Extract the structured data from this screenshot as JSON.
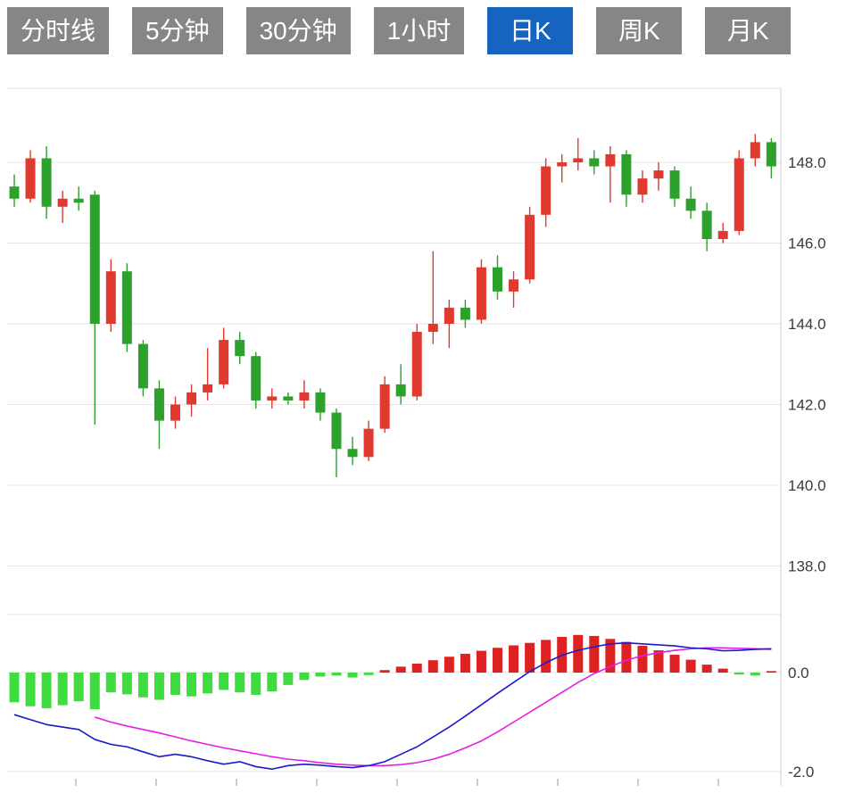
{
  "tabs": {
    "items": [
      {
        "label": "分时线",
        "active": false
      },
      {
        "label": "5分钟",
        "active": false
      },
      {
        "label": "30分钟",
        "active": false
      },
      {
        "label": "1小时",
        "active": false
      },
      {
        "label": "日K",
        "active": true
      },
      {
        "label": "周K",
        "active": false
      },
      {
        "label": "月K",
        "active": false
      }
    ],
    "active_bg": "#1565c0",
    "inactive_bg": "#868686",
    "text_color": "#ffffff"
  },
  "chart_data": {
    "type": "candlestick",
    "title": "",
    "xlabel": "",
    "ylabel": "",
    "grid": true,
    "legend_position": "none",
    "up_color": "#e0392f",
    "down_color": "#2ca12c",
    "hist_up_color": "#dd2222",
    "hist_down_color": "#3fdc3f",
    "dif_color": "#1a1ac8",
    "dea_color": "#e41ee4",
    "grid_color": "#e5e5e5",
    "axis_color": "#cccccc",
    "tick_color": "#999999",
    "label_color": "#3a3a3a",
    "panels": [
      {
        "name": "price",
        "ylabels": [
          "148.0",
          "146.0",
          "144.0",
          "142.0",
          "140.0",
          "138.0"
        ],
        "ylim": [
          137.4,
          149.8
        ],
        "candles": {
          "o": [
            147.4,
            147.1,
            148.1,
            146.9,
            147.1,
            147.2,
            144.0,
            145.3,
            143.5,
            142.4,
            141.6,
            142.0,
            142.3,
            142.5,
            143.6,
            143.2,
            142.1,
            142.2,
            142.1,
            142.3,
            141.8,
            140.9,
            140.7,
            141.4,
            142.5,
            142.2,
            143.8,
            144.0,
            144.4,
            144.1,
            145.4,
            144.8,
            145.1,
            146.7,
            147.9,
            148.0,
            148.1,
            147.9,
            148.2,
            147.2,
            147.6,
            147.8,
            147.1,
            146.8,
            146.1,
            146.3,
            148.1,
            148.5
          ],
          "h": [
            147.7,
            148.3,
            148.4,
            147.3,
            147.4,
            147.3,
            145.6,
            145.5,
            143.6,
            142.6,
            142.2,
            142.5,
            143.4,
            143.9,
            143.8,
            143.3,
            142.4,
            142.3,
            142.6,
            142.4,
            141.9,
            141.2,
            141.6,
            142.7,
            143.0,
            144.0,
            145.8,
            144.6,
            144.6,
            145.6,
            145.7,
            145.3,
            146.9,
            148.1,
            148.2,
            148.6,
            148.3,
            148.4,
            148.3,
            147.8,
            148.0,
            147.9,
            147.4,
            147.0,
            146.5,
            148.3,
            148.7,
            148.6
          ],
          "l": [
            146.9,
            147.0,
            146.6,
            146.5,
            146.8,
            141.5,
            143.8,
            143.3,
            142.2,
            140.9,
            141.4,
            141.7,
            142.1,
            142.4,
            143.0,
            141.9,
            141.9,
            142.0,
            141.9,
            141.6,
            140.2,
            140.5,
            140.6,
            141.3,
            142.0,
            142.1,
            143.5,
            143.4,
            143.9,
            144.0,
            144.6,
            144.4,
            145.0,
            146.4,
            147.5,
            147.8,
            147.7,
            147.0,
            146.9,
            147.0,
            147.3,
            146.9,
            146.6,
            145.8,
            146.0,
            146.2,
            147.9,
            147.6
          ],
          "c": [
            147.1,
            148.1,
            146.9,
            147.1,
            147.0,
            144.0,
            145.3,
            143.5,
            142.4,
            141.6,
            142.0,
            142.3,
            142.5,
            143.6,
            143.2,
            142.1,
            142.2,
            142.1,
            142.3,
            141.8,
            140.9,
            140.7,
            141.4,
            142.5,
            142.2,
            143.8,
            144.0,
            144.4,
            144.1,
            145.4,
            144.8,
            145.1,
            146.7,
            147.9,
            148.0,
            148.1,
            147.9,
            148.2,
            147.2,
            147.6,
            147.8,
            147.1,
            146.8,
            146.1,
            146.3,
            148.1,
            148.5,
            147.9
          ]
        }
      },
      {
        "name": "macd",
        "ylabels": [
          "0.0",
          "-2.0"
        ],
        "ylim": [
          -2.25,
          1.15
        ],
        "histogram": [
          -0.6,
          -0.68,
          -0.72,
          -0.66,
          -0.58,
          -0.74,
          -0.4,
          -0.44,
          -0.5,
          -0.55,
          -0.45,
          -0.48,
          -0.42,
          -0.35,
          -0.4,
          -0.45,
          -0.38,
          -0.25,
          -0.15,
          -0.08,
          -0.06,
          -0.1,
          -0.05,
          0.05,
          0.12,
          0.18,
          0.25,
          0.32,
          0.38,
          0.44,
          0.5,
          0.55,
          0.6,
          0.66,
          0.72,
          0.76,
          0.74,
          0.68,
          0.62,
          0.54,
          0.45,
          0.36,
          0.26,
          0.16,
          0.08,
          -0.04,
          -0.06,
          0.03
        ],
        "dif": [
          -0.85,
          -0.95,
          -1.05,
          -1.1,
          -1.15,
          -1.35,
          -1.45,
          -1.5,
          -1.6,
          -1.7,
          -1.65,
          -1.7,
          -1.78,
          -1.85,
          -1.8,
          -1.9,
          -1.95,
          -1.88,
          -1.85,
          -1.87,
          -1.9,
          -1.92,
          -1.88,
          -1.8,
          -1.65,
          -1.5,
          -1.3,
          -1.1,
          -0.88,
          -0.65,
          -0.42,
          -0.2,
          0.02,
          0.2,
          0.35,
          0.45,
          0.52,
          0.58,
          0.6,
          0.58,
          0.56,
          0.54,
          0.5,
          0.48,
          0.44,
          0.45,
          0.47,
          0.48
        ],
        "dea": [
          null,
          null,
          null,
          null,
          null,
          -0.9,
          -1.0,
          -1.08,
          -1.15,
          -1.22,
          -1.3,
          -1.38,
          -1.45,
          -1.52,
          -1.58,
          -1.64,
          -1.7,
          -1.75,
          -1.78,
          -1.82,
          -1.85,
          -1.87,
          -1.88,
          -1.88,
          -1.86,
          -1.82,
          -1.75,
          -1.65,
          -1.52,
          -1.38,
          -1.2,
          -1.0,
          -0.8,
          -0.6,
          -0.4,
          -0.2,
          -0.02,
          0.12,
          0.25,
          0.34,
          0.4,
          0.45,
          0.48,
          0.5,
          0.5,
          0.49,
          0.48,
          0.47
        ]
      }
    ]
  }
}
